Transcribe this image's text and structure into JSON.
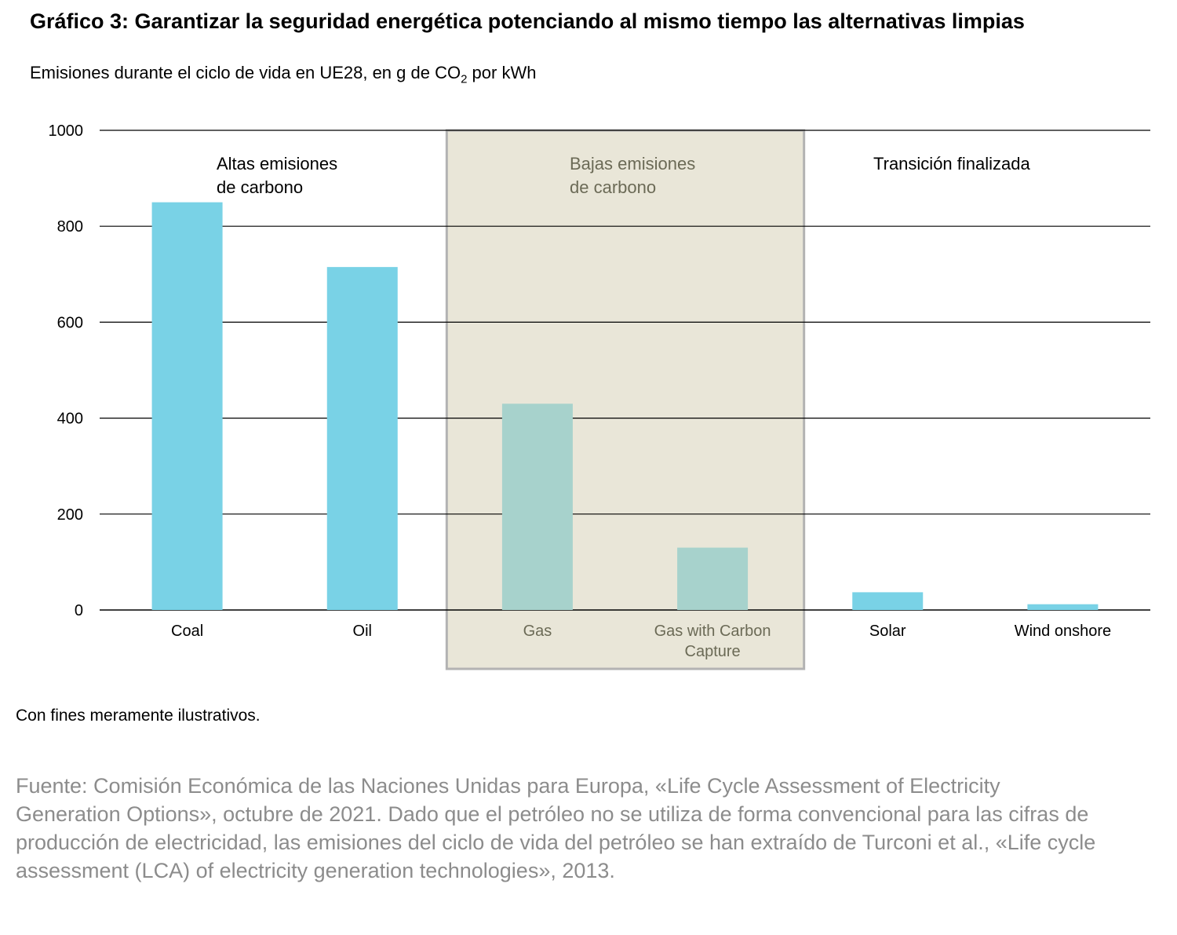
{
  "title": "Gráfico 3: Garantizar la seguridad energética potenciando al mismo tiempo las alternativas limpias",
  "subtitle_main": "Emisiones durante el ciclo de vida en UE28, en g de CO",
  "subtitle_sub": "2",
  "subtitle_tail": " por kWh",
  "note": "Con fines meramente ilustrativos.",
  "source": "Fuente: Comisión Económica de las Naciones Unidas para Europa, «Life Cycle Assessment of Electricity Generation Options», octubre de 2021. Dado que el petróleo no se utiliza de forma convencional para las cifras de producción de electricidad, las emisiones del ciclo de vida del petróleo se han extraído de Turconi et al., «Life cycle assessment (LCA) of electricity generation technologies», 2013.",
  "colors": {
    "bar_blue": "#79d2e6",
    "bar_teal": "#a7d2cc",
    "highlight_fill": "#e9e6d8",
    "highlight_border": "#b3b3b3",
    "highlight_text": "#6b6a56",
    "source_text": "#8c8c8c"
  },
  "chart_data": {
    "type": "bar",
    "categories": [
      "Coal",
      "Oil",
      "Gas",
      "Gas with Carbon Capture",
      "Solar",
      "Wind onshore"
    ],
    "category_lines": [
      [
        "Coal"
      ],
      [
        "Oil"
      ],
      [
        "Gas"
      ],
      [
        "Gas with Carbon",
        "Capture"
      ],
      [
        "Solar"
      ],
      [
        "Wind onshore"
      ]
    ],
    "values": [
      850,
      715,
      430,
      130,
      37,
      12
    ],
    "highlighted": [
      false,
      false,
      true,
      true,
      false,
      false
    ],
    "ylim": [
      0,
      1000
    ],
    "yticks": [
      0,
      200,
      400,
      600,
      800,
      1000
    ],
    "grid": true,
    "xlabel": "",
    "ylabel": "",
    "groups": [
      {
        "lines": [
          "Altas emisiones",
          "de carbono"
        ],
        "highlighted": false
      },
      {
        "lines": [
          "Bajas emisiones",
          "de carbono"
        ],
        "highlighted": true
      },
      {
        "lines": [
          "Transición finalizada"
        ],
        "highlighted": false
      }
    ]
  }
}
